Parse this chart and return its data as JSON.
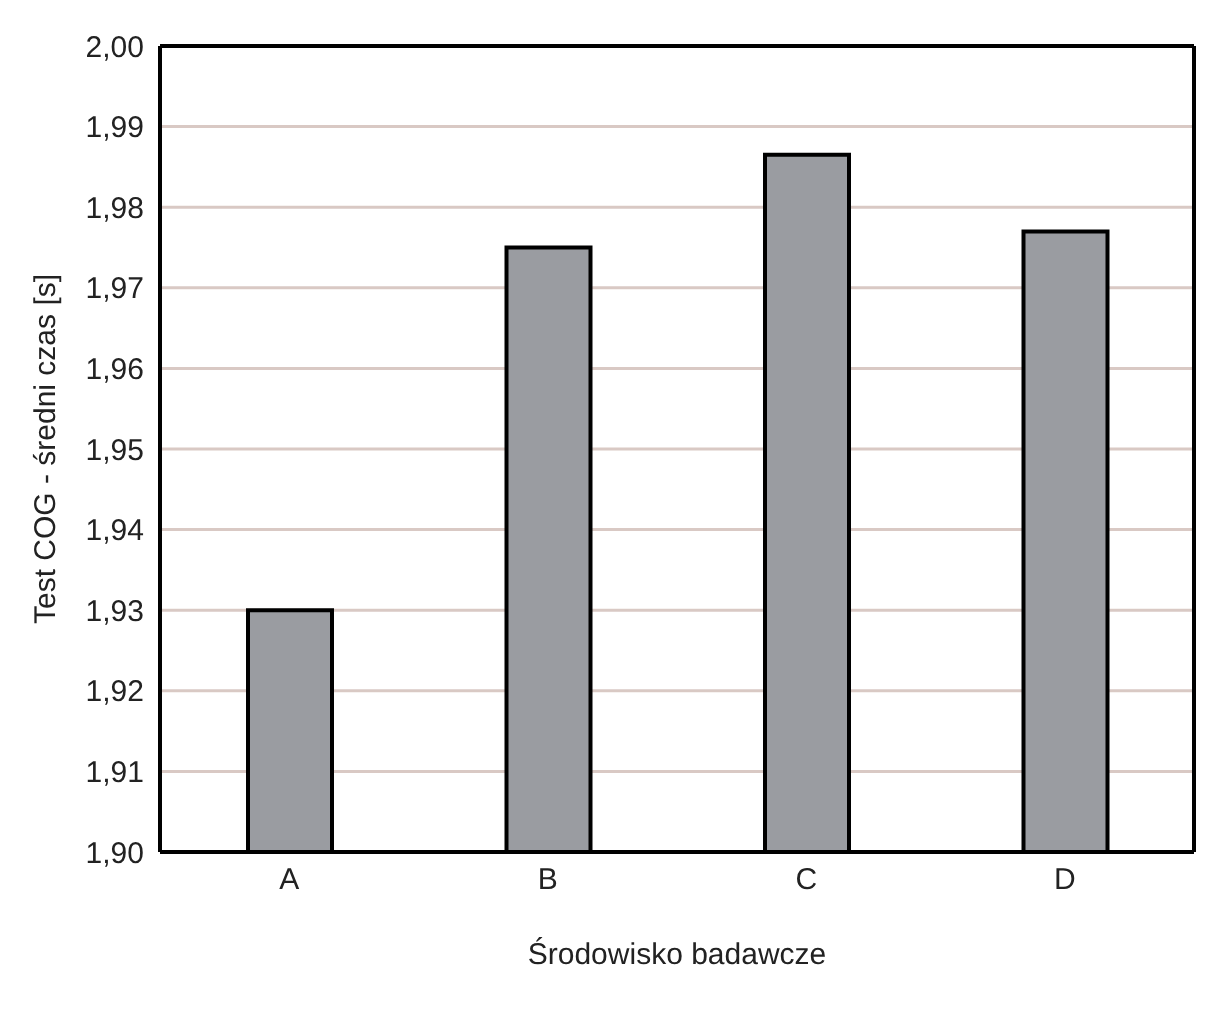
{
  "chart_data": {
    "type": "bar",
    "xlabel": "Środowisko badawcze",
    "ylabel": "Test COG - średni czas [s]",
    "categories": [
      "A",
      "B",
      "C",
      "D"
    ],
    "values": [
      1.93,
      1.975,
      1.9865,
      1.977
    ],
    "color": "#9a9ca1",
    "ylim": [
      1.9,
      2.0
    ],
    "yticks": [
      {
        "value": 1.9,
        "label": "1,90"
      },
      {
        "value": 1.91,
        "label": "1,91"
      },
      {
        "value": 1.92,
        "label": "1,92"
      },
      {
        "value": 1.93,
        "label": "1,93"
      },
      {
        "value": 1.94,
        "label": "1,94"
      },
      {
        "value": 1.95,
        "label": "1,95"
      },
      {
        "value": 1.96,
        "label": "1,96"
      },
      {
        "value": 1.97,
        "label": "1,97"
      },
      {
        "value": 1.98,
        "label": "1,98"
      },
      {
        "value": 1.99,
        "label": "1,99"
      },
      {
        "value": 2.0,
        "label": "2,00"
      }
    ],
    "grid": "y"
  }
}
